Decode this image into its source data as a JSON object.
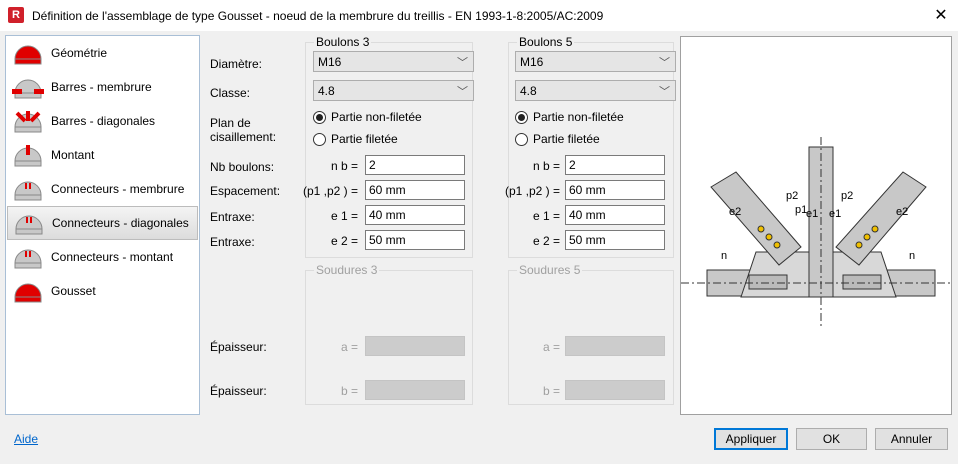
{
  "window": {
    "title": "Définition de l'assemblage de type Gousset - noeud de la membrure du treillis - EN 1993-1-8:2005/AC:2009",
    "app_icon": "R",
    "close": "✕"
  },
  "sidebar": {
    "items": [
      {
        "label": "Géométrie",
        "icon": "gusset-red-icon"
      },
      {
        "label": "Barres - membrure",
        "icon": "chord-bars-icon"
      },
      {
        "label": "Barres - diagonales",
        "icon": "diagonal-bars-icon"
      },
      {
        "label": "Montant",
        "icon": "vertical-icon"
      },
      {
        "label": "Connecteurs - membrure",
        "icon": "chord-connectors-icon"
      },
      {
        "label": "Connecteurs - diagonales",
        "icon": "diagonal-connectors-icon",
        "selected": true
      },
      {
        "label": "Connecteurs - montant",
        "icon": "vertical-connectors-icon"
      },
      {
        "label": "Gousset",
        "icon": "gusset-icon"
      }
    ]
  },
  "labels": {
    "diametre": "Diamètre:",
    "classe": "Classe:",
    "plan1": "Plan de",
    "plan2": "cisaillement:",
    "nb": "Nb boulons:",
    "espacement": "Espacement:",
    "entraxe1": "Entraxe:",
    "entraxe2": "Entraxe:",
    "epaisseur_a": "Épaisseur:",
    "epaisseur_b": "Épaisseur:"
  },
  "symbols": {
    "nb": "n b =",
    "esp": "(p1 ,p2 ) =",
    "e1": "e 1 =",
    "e2": "e 2 =",
    "a": "a =",
    "b": "b ="
  },
  "bolts": [
    {
      "title": "Boulons 3",
      "diameter": "M16",
      "class": "4.8",
      "radio1": "Partie non-filetée",
      "radio2": "Partie filetée",
      "selected_radio": 1,
      "nb": "2",
      "spacing": "60 mm",
      "e1": "40 mm",
      "e2": "50 mm"
    },
    {
      "title": "Boulons 5",
      "diameter": "M16",
      "class": "4.8",
      "radio1": "Partie non-filetée",
      "radio2": "Partie filetée",
      "selected_radio": 1,
      "nb": "2",
      "spacing": "60 mm",
      "e1": "40 mm",
      "e2": "50 mm"
    }
  ],
  "welds": [
    {
      "title": "Soudures 3",
      "a": "",
      "b": ""
    },
    {
      "title": "Soudures 5",
      "a": "",
      "b": ""
    }
  ],
  "diagram": {
    "labels": [
      "p2",
      "p2",
      "p1",
      "e1",
      "e1",
      "e2",
      "e2",
      "n",
      "n"
    ]
  },
  "footer": {
    "help": "Aide",
    "apply": "Appliquer",
    "ok": "OK",
    "cancel": "Annuler"
  },
  "colors": {
    "accent": "#0078d7",
    "icon_red": "#e00000"
  }
}
